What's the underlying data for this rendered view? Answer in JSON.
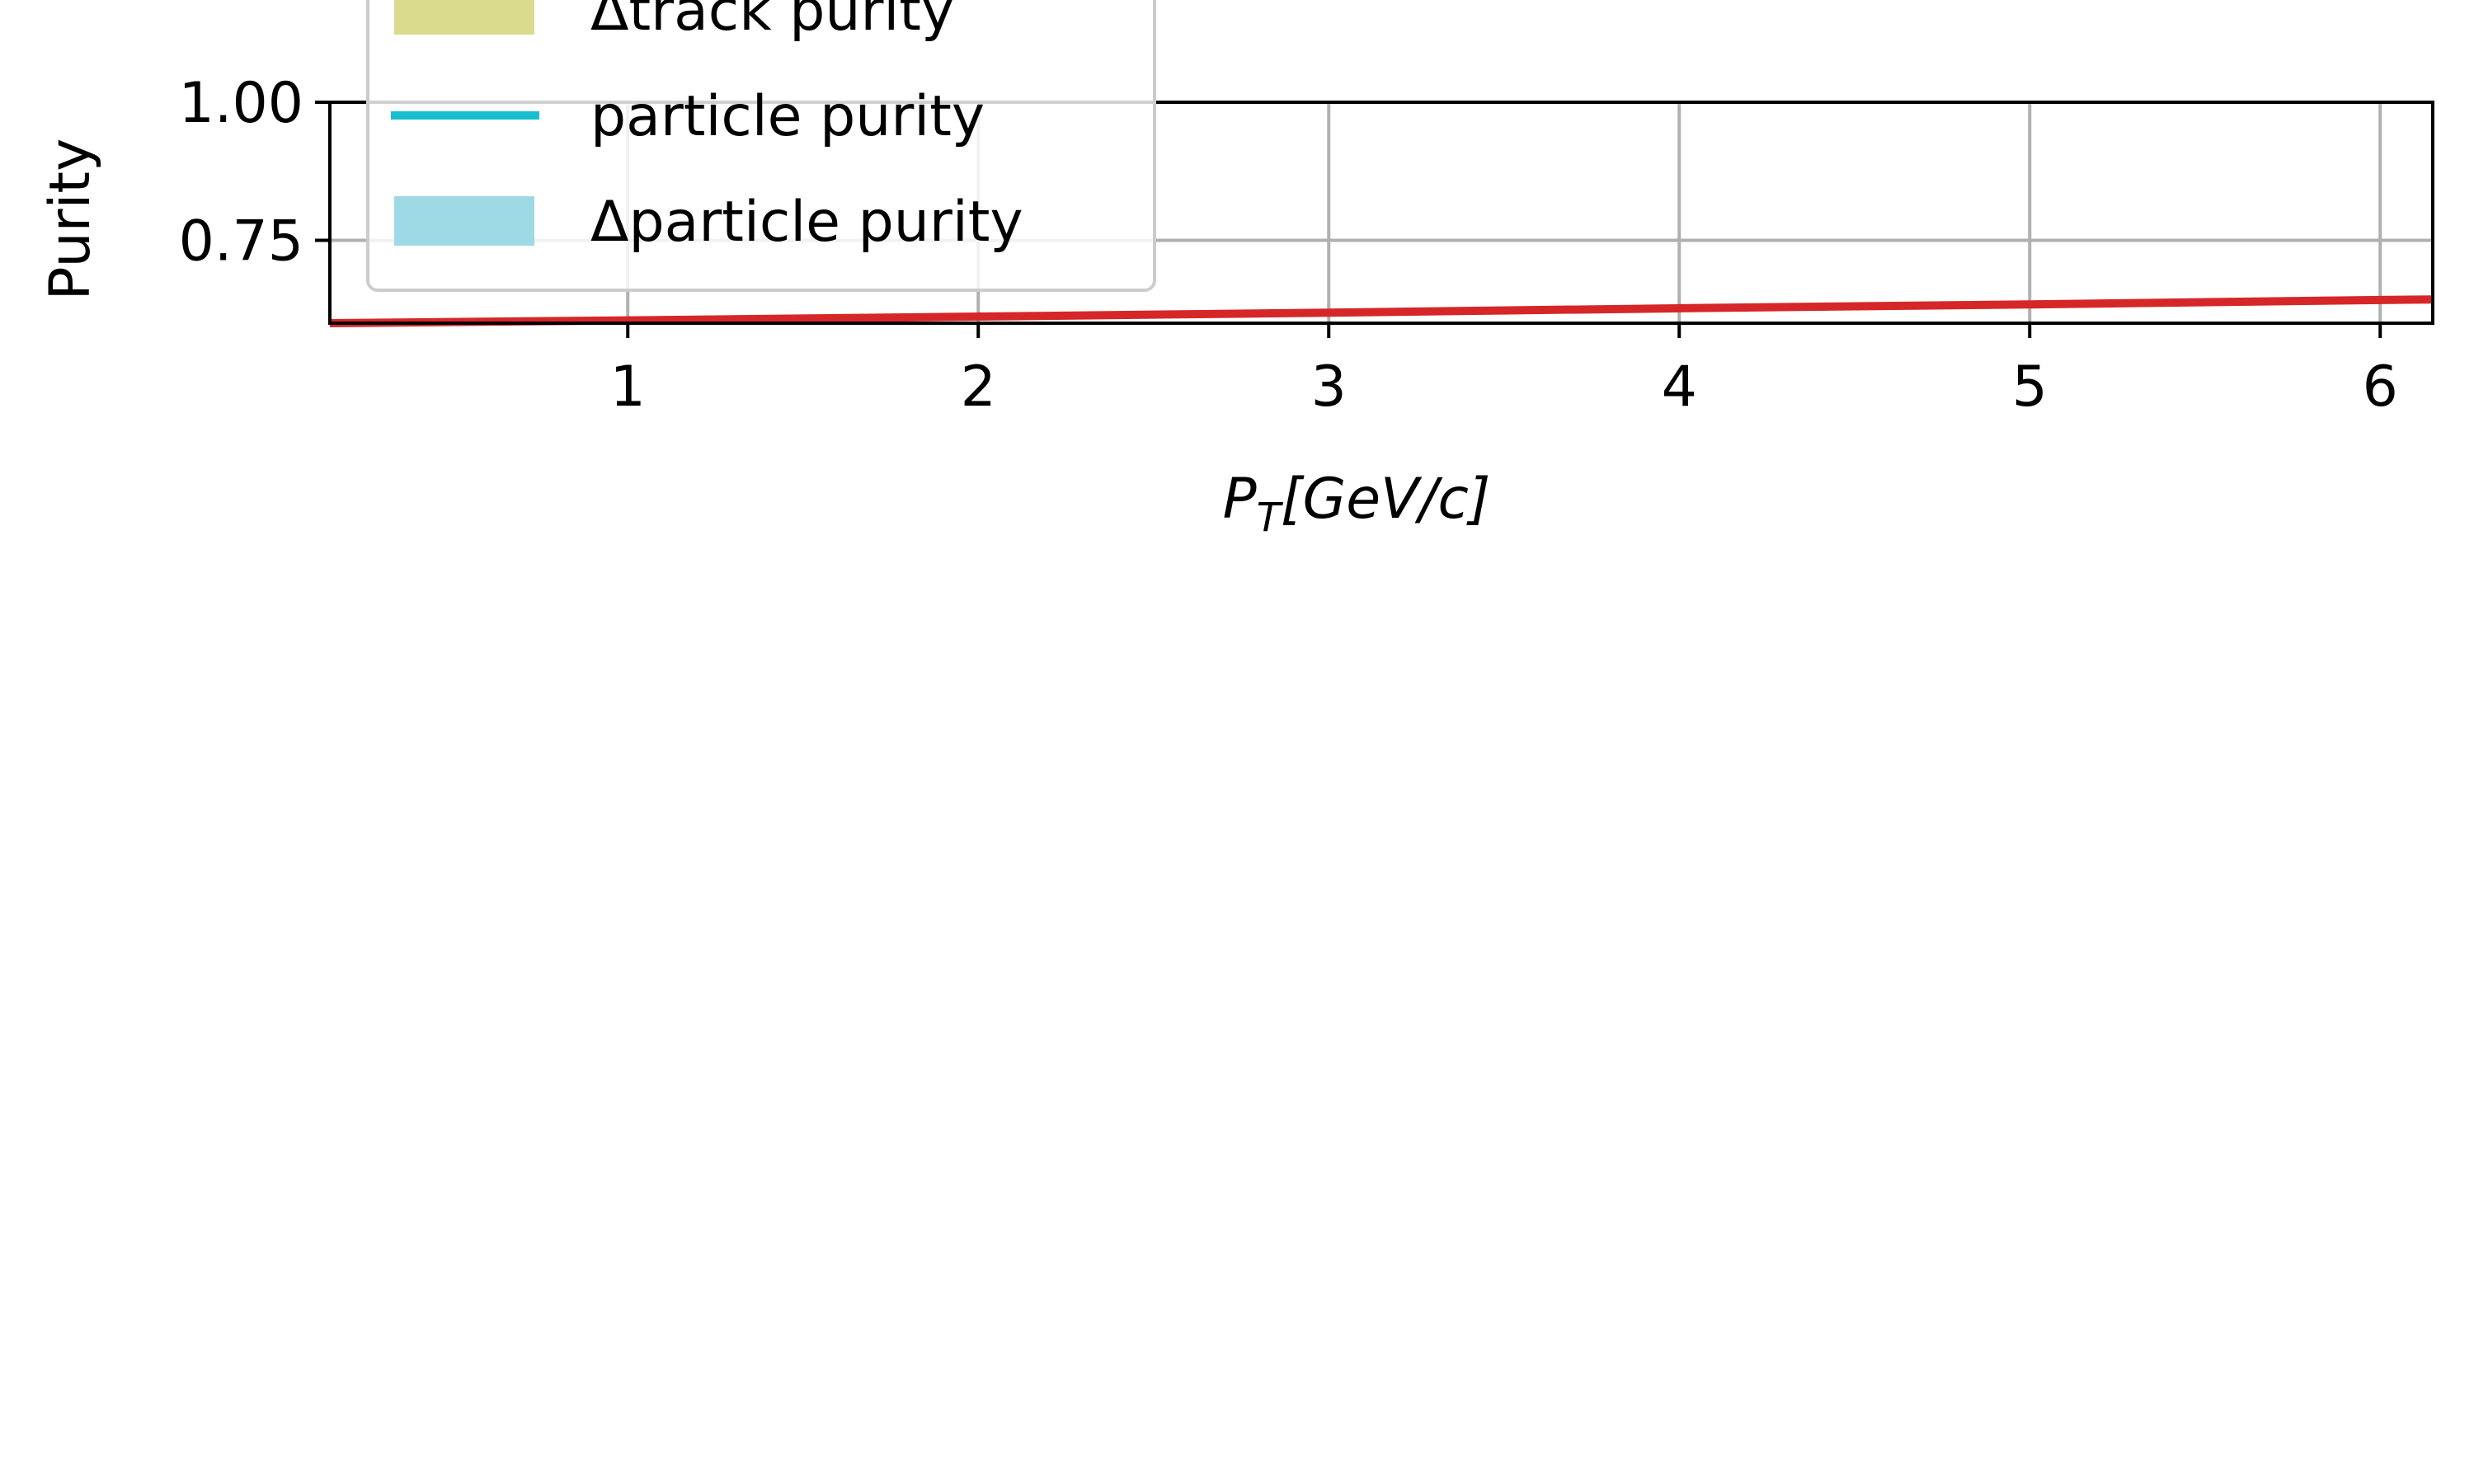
{
  "chart_data": {
    "type": "line",
    "xlabel": "P_T[GeV/c]",
    "xlabel_parts": {
      "base": "P",
      "sub": "T",
      "rest": "[GeV/c]"
    },
    "ylabel": "Purity",
    "xlim": [
      0.15,
      6.15
    ],
    "ylim": [
      0.6,
      1.0
    ],
    "x_ticks": [
      1,
      2,
      3,
      4,
      5,
      6
    ],
    "x_tick_labels": [
      "1",
      "2",
      "3",
      "4",
      "5",
      "6"
    ],
    "y_ticks": [
      0.75,
      1.0
    ],
    "y_tick_labels": [
      "0.75",
      "1.00"
    ],
    "grid": true,
    "legend_placement": "upper-left",
    "legend": [
      {
        "label": "Δtrack purity",
        "kind": "patch",
        "color": "#dbdb8d"
      },
      {
        "label": "particle purity",
        "kind": "line",
        "color": "#17becf"
      },
      {
        "label": "Δparticle purity",
        "kind": "patch",
        "color": "#9edae5"
      }
    ],
    "series": [
      {
        "color": "#d62728",
        "x": [
          0.15,
          1,
          2,
          3,
          4,
          5,
          6,
          6.15
        ],
        "y": [
          0.6,
          0.605,
          0.612,
          0.619,
          0.627,
          0.634,
          0.642,
          0.643
        ]
      }
    ]
  }
}
